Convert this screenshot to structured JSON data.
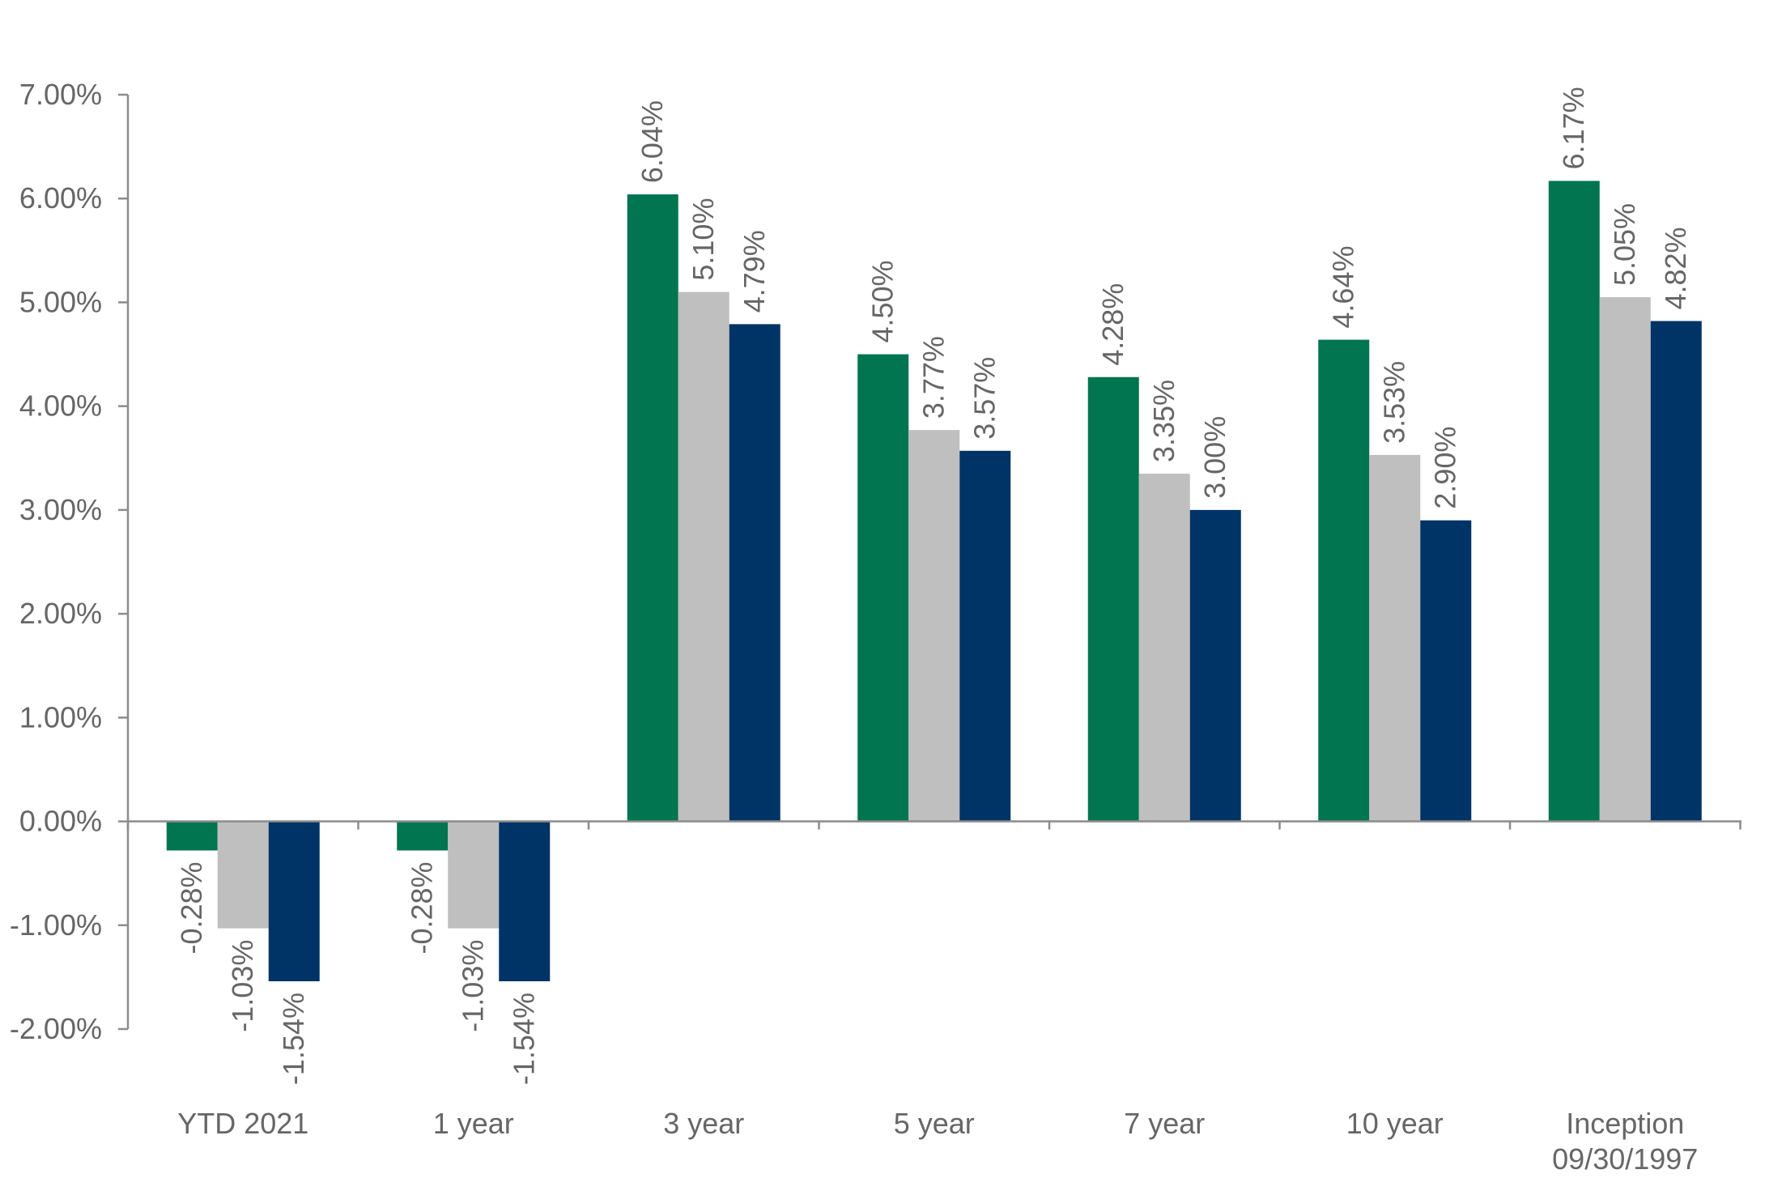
{
  "chart_data": {
    "type": "bar",
    "categories": [
      [
        "YTD 2021"
      ],
      [
        "1 year"
      ],
      [
        "3 year"
      ],
      [
        "5 year"
      ],
      [
        "7 year"
      ],
      [
        "10 year"
      ],
      [
        "Inception",
        "09/30/1997"
      ]
    ],
    "series": [
      {
        "color": "#007550",
        "values": [
          -0.28,
          -0.28,
          6.04,
          4.5,
          4.28,
          4.64,
          6.17
        ],
        "labels": [
          "-0.28%",
          "-0.28%",
          "6.04%",
          "4.50%",
          "4.28%",
          "4.64%",
          "6.17%"
        ]
      },
      {
        "color": "#bfbfbf",
        "values": [
          -1.03,
          -1.03,
          5.1,
          3.77,
          3.35,
          3.53,
          5.05
        ],
        "labels": [
          "-1.03%",
          "-1.03%",
          "5.10%",
          "3.77%",
          "3.35%",
          "3.53%",
          "5.05%"
        ]
      },
      {
        "color": "#003366",
        "values": [
          -1.54,
          -1.54,
          4.79,
          3.57,
          3.0,
          2.9,
          4.82
        ],
        "labels": [
          "-1.54%",
          "-1.54%",
          "4.79%",
          "3.57%",
          "3.00%",
          "2.90%",
          "4.82%"
        ]
      }
    ],
    "ylim": [
      -2,
      7
    ],
    "yticks": [
      7,
      6,
      5,
      4,
      3,
      2,
      1,
      0,
      -1,
      -2
    ],
    "ytick_labels": [
      "7.00%",
      "6.00%",
      "5.00%",
      "4.00%",
      "3.00%",
      "2.00%",
      "1.00%",
      "0.00%",
      "-1.00%",
      "-2.00%"
    ],
    "data_label_orientation": "rotated-vertical",
    "grid": false,
    "legend": "none"
  }
}
